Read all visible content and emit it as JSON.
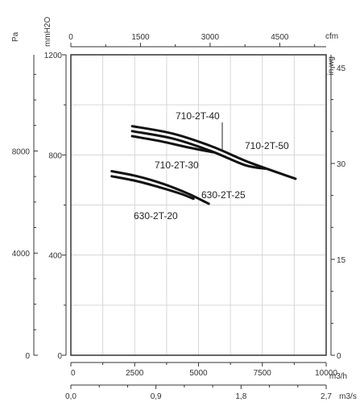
{
  "chart_data": {
    "type": "line",
    "axes": {
      "x_bottom": {
        "unit": "m3/h",
        "range": [
          0,
          10000
        ],
        "ticks": [
          "0",
          "2500",
          "5000",
          "7500",
          "10000"
        ]
      },
      "x_bottom2": {
        "unit": "m3/s",
        "range": [
          0,
          2.7
        ],
        "ticks": [
          "0,0",
          "0,9",
          "1,8",
          "2,7"
        ]
      },
      "x_top": {
        "unit": "cfm",
        "range": [
          0,
          5500
        ],
        "ticks": [
          "0",
          "1500",
          "3000",
          "4500"
        ]
      },
      "y_left": {
        "unit": "mmH2O",
        "range": [
          0,
          1200
        ],
        "ticks": [
          "0",
          "400",
          "800",
          "1200"
        ]
      },
      "y_left2": {
        "unit": "Pa",
        "ticks": [
          "0",
          "4000",
          "8000"
        ]
      },
      "y_right": {
        "unit": "in wg",
        "range": [
          0,
          47
        ],
        "ticks": [
          "0",
          "15",
          "30",
          "45"
        ]
      }
    },
    "grid": true,
    "series": [
      {
        "name": "710-2T-50",
        "x": [
          2400,
          4000,
          5500,
          7000,
          8800
        ],
        "y": [
          915,
          885,
          835,
          770,
          705
        ]
      },
      {
        "name": "710-2T-40",
        "x": [
          2400,
          4000,
          5500,
          6800,
          7600
        ],
        "y": [
          895,
          865,
          815,
          760,
          745
        ]
      },
      {
        "name": "710-2T-30",
        "x": [
          2400,
          3500,
          4600,
          5600
        ],
        "y": [
          875,
          855,
          830,
          810
        ]
      },
      {
        "name": "630-2T-25",
        "x": [
          1600,
          2600,
          3600,
          4600,
          5400
        ],
        "y": [
          735,
          715,
          685,
          645,
          605
        ]
      },
      {
        "name": "630-2T-20",
        "x": [
          1600,
          2600,
          3500,
          4300,
          4800
        ],
        "y": [
          715,
          695,
          670,
          645,
          625
        ]
      }
    ],
    "labels": {
      "710-2T-40": "710-2T-40",
      "710-2T-50": "710-2T-50",
      "710-2T-30": "710-2T-30",
      "630-2T-25": "630-2T-25",
      "630-2T-20": "630-2T-20"
    }
  }
}
